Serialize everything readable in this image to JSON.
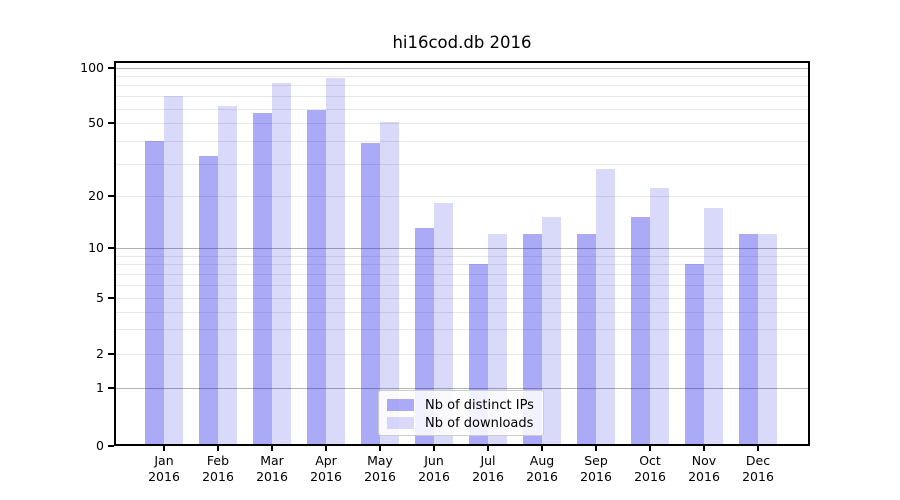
{
  "chart_data": {
    "type": "bar",
    "title": "hi16cod.db 2016",
    "categories": [
      "Jan",
      "Feb",
      "Mar",
      "Apr",
      "May",
      "Jun",
      "Jul",
      "Aug",
      "Sep",
      "Oct",
      "Nov",
      "Dec"
    ],
    "category_year": "2016",
    "series": [
      {
        "name": "Nb of distinct IPs",
        "color": "rgba(5,6,229,0.34)",
        "values": [
          40,
          33,
          57,
          59,
          39,
          13,
          8,
          12,
          12,
          15,
          8,
          12
        ]
      },
      {
        "name": "Nb of downloads",
        "color": "rgba(0,8,215,0.15)",
        "values": [
          70,
          62,
          83,
          88,
          51,
          18,
          12,
          15,
          28,
          22,
          17,
          12
        ]
      }
    ],
    "yscale": "symlog",
    "ylim": [
      0,
      107
    ],
    "y_ticks": [
      "100",
      "50",
      "20",
      "10",
      "5",
      "2",
      "1",
      "0"
    ],
    "grid": {
      "major": [
        1,
        10,
        100
      ],
      "minor": [
        2,
        3,
        4,
        5,
        6,
        7,
        8,
        9,
        20,
        30,
        40,
        50,
        60,
        70,
        80,
        90
      ]
    },
    "legend_position": "lower center",
    "xlabel": "",
    "ylabel": ""
  },
  "colors": {
    "grid_major": "#b3b3b3",
    "grid_minor": "#e8e8e8",
    "axis": "#000000",
    "legend_border": "#cccccc",
    "background": "#ffffff",
    "text": "#000000"
  }
}
